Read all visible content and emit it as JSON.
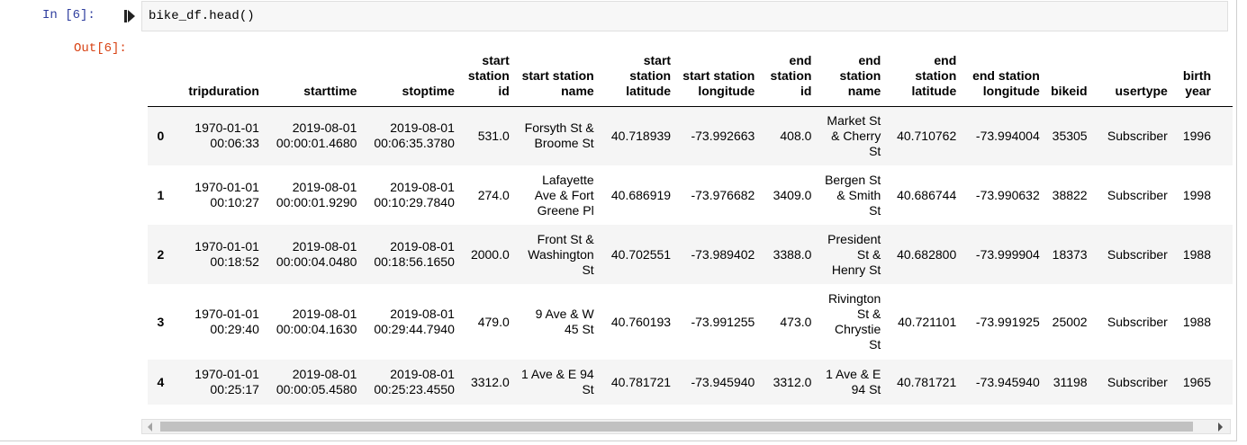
{
  "cell": {
    "in_prompt": "In [6]:",
    "out_prompt": "Out[6]:",
    "code": "bike_df.head()"
  },
  "table": {
    "columns": [
      "",
      "tripduration",
      "starttime",
      "stoptime",
      "start station id",
      "start station name",
      "start station latitude",
      "start station longitude",
      "end station id",
      "end station name",
      "end station latitude",
      "end station longitude",
      "bikeid",
      "usertype",
      "birth year"
    ],
    "rows": [
      [
        "0",
        "1970-01-01 00:06:33",
        "2019-08-01 00:00:01.4680",
        "2019-08-01 00:06:35.3780",
        "531.0",
        "Forsyth St & Broome St",
        "40.718939",
        "-73.992663",
        "408.0",
        "Market St & Cherry St",
        "40.710762",
        "-73.994004",
        "35305",
        "Subscriber",
        "1996"
      ],
      [
        "1",
        "1970-01-01 00:10:27",
        "2019-08-01 00:00:01.9290",
        "2019-08-01 00:10:29.7840",
        "274.0",
        "Lafayette Ave & Fort Greene Pl",
        "40.686919",
        "-73.976682",
        "3409.0",
        "Bergen St & Smith St",
        "40.686744",
        "-73.990632",
        "38822",
        "Subscriber",
        "1998"
      ],
      [
        "2",
        "1970-01-01 00:18:52",
        "2019-08-01 00:00:04.0480",
        "2019-08-01 00:18:56.1650",
        "2000.0",
        "Front St & Washington St",
        "40.702551",
        "-73.989402",
        "3388.0",
        "President St & Henry St",
        "40.682800",
        "-73.999904",
        "18373",
        "Subscriber",
        "1988"
      ],
      [
        "3",
        "1970-01-01 00:29:40",
        "2019-08-01 00:00:04.1630",
        "2019-08-01 00:29:44.7940",
        "479.0",
        "9 Ave & W 45 St",
        "40.760193",
        "-73.991255",
        "473.0",
        "Rivington St & Chrystie St",
        "40.721101",
        "-73.991925",
        "25002",
        "Subscriber",
        "1988"
      ],
      [
        "4",
        "1970-01-01 00:25:17",
        "2019-08-01 00:00:05.4580",
        "2019-08-01 00:25:23.4550",
        "3312.0",
        "1 Ave & E 94 St",
        "40.781721",
        "-73.945940",
        "3312.0",
        "1 Ave & E 94 St",
        "40.781721",
        "-73.945940",
        "31198",
        "Subscriber",
        "1965"
      ]
    ]
  },
  "colors": {
    "in_prompt": "#303f9f",
    "out_prompt": "#d84315",
    "code_bg": "#f7f7f7",
    "odd_row_bg": "#f5f5f5"
  },
  "icons": {
    "run_indicator": "run-cell-icon",
    "scroll_left": "scroll-left-arrow-icon",
    "scroll_right": "scroll-right-arrow-icon"
  }
}
